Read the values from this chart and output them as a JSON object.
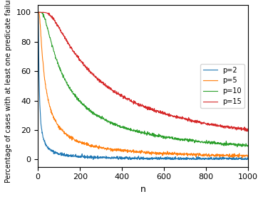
{
  "title": "",
  "xlabel": "n",
  "ylabel": "Percentage of cases with at least one predicate failures",
  "xlim": [
    0,
    1000
  ],
  "ylim": [
    -5,
    105
  ],
  "p_values": [
    2,
    5,
    10,
    15
  ],
  "colors": {
    "2": "#1f77b4",
    "5": "#ff7f0e",
    "10": "#2ca02c",
    "15": "#d62728"
  },
  "legend_loc": "center right",
  "n_start": 1,
  "n_end": 1000,
  "n_steps": 1000,
  "yticks": [
    0,
    20,
    40,
    60,
    80,
    100
  ],
  "xticks": [
    0,
    200,
    400,
    600,
    800,
    1000
  ],
  "noise_seed": 42
}
